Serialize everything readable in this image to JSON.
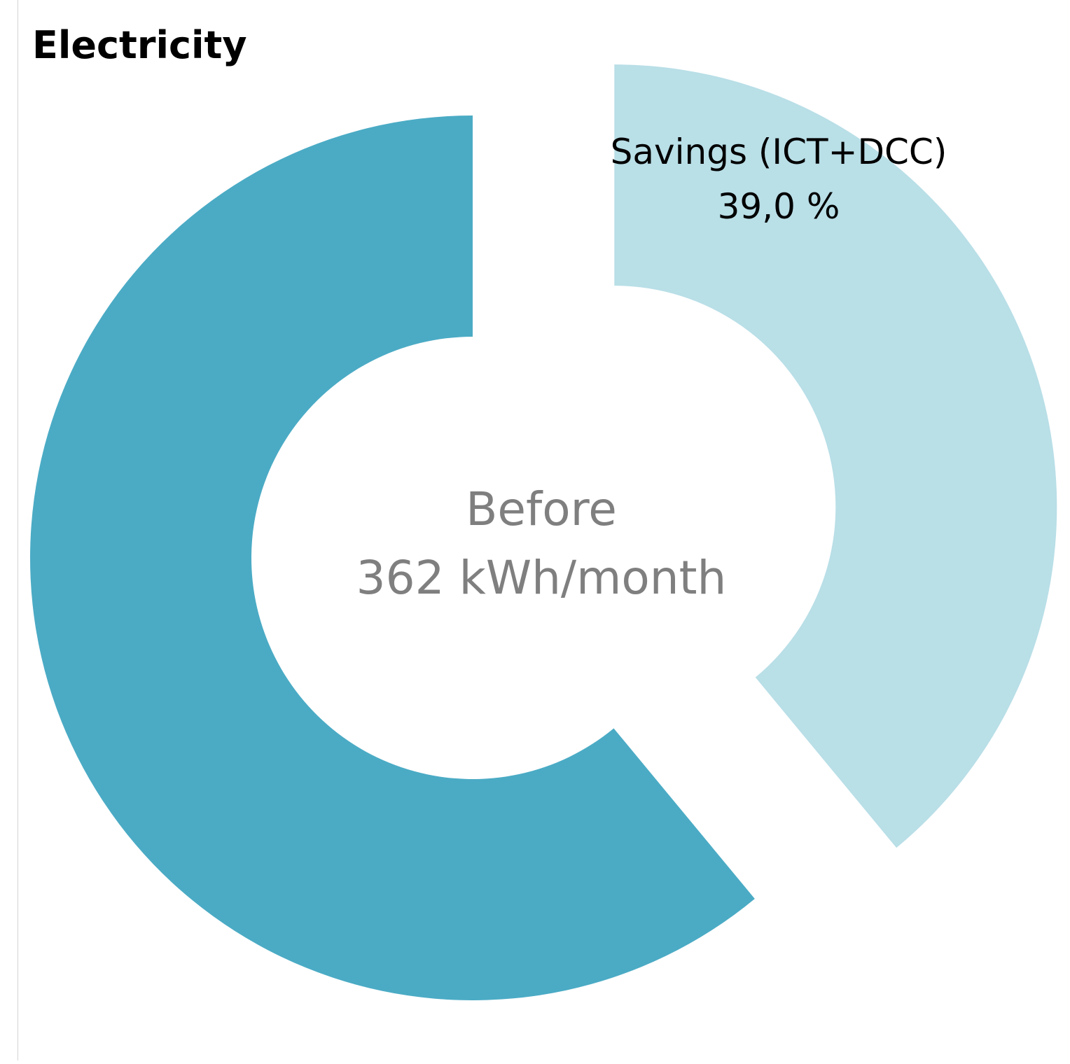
{
  "chart_data": {
    "type": "pie",
    "title": "Electricity",
    "center_label": {
      "line1": "Before",
      "line2": "362 kWh/month"
    },
    "slices": [
      {
        "name": "Savings (ICT+DCC)",
        "value_label": "39,0 %",
        "percent": 39.0,
        "color": "#b9dfe7",
        "exploded": true
      },
      {
        "name": "",
        "percent": 61.0,
        "color": "#4babc5",
        "exploded": false
      }
    ],
    "legend": "none",
    "grid": false
  }
}
